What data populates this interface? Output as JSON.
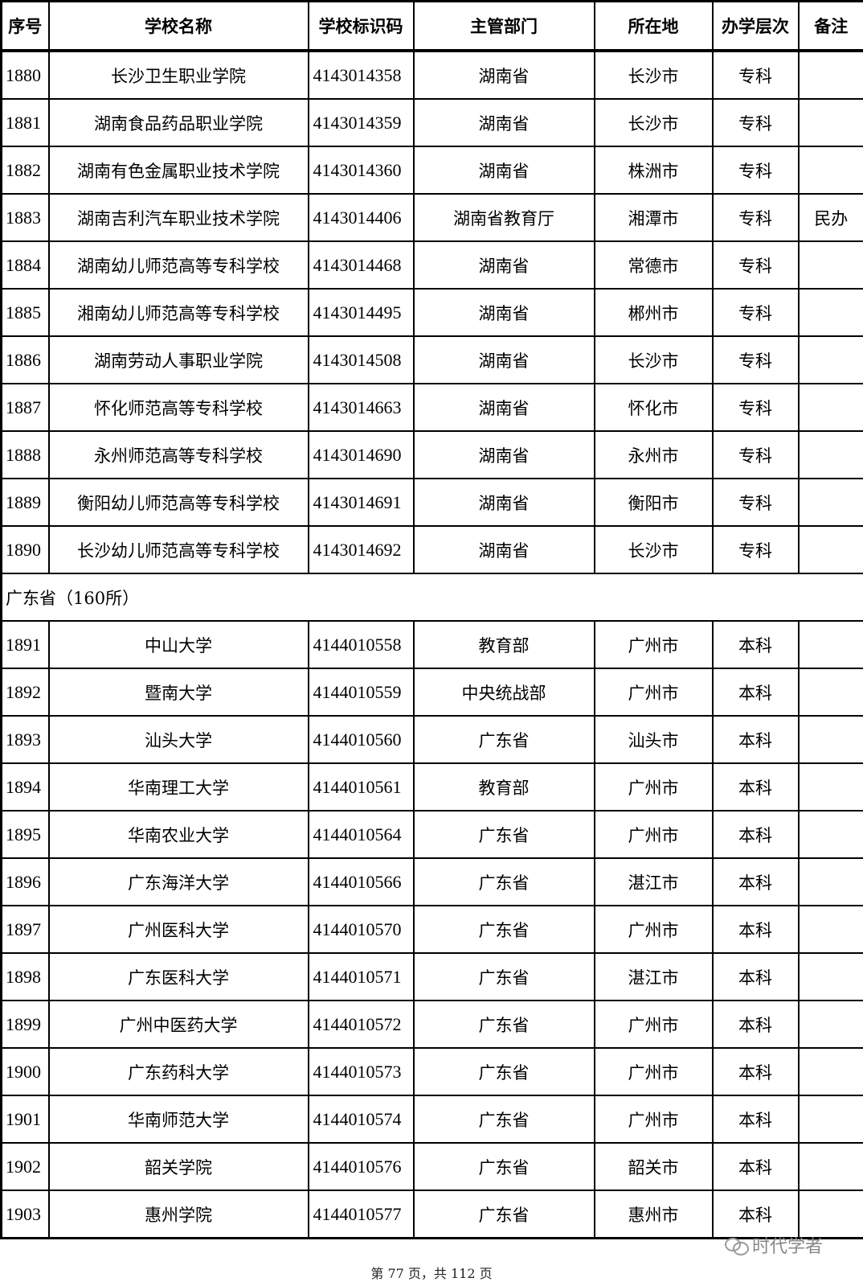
{
  "columns": [
    "序号",
    "学校名称",
    "学校标识码",
    "主管部门",
    "所在地",
    "办学层次",
    "备注"
  ],
  "rows": [
    [
      "1880",
      "长沙卫生职业学院",
      "4143014358",
      "湖南省",
      "长沙市",
      "专科",
      ""
    ],
    [
      "1881",
      "湖南食品药品职业学院",
      "4143014359",
      "湖南省",
      "长沙市",
      "专科",
      ""
    ],
    [
      "1882",
      "湖南有色金属职业技术学院",
      "4143014360",
      "湖南省",
      "株洲市",
      "专科",
      ""
    ],
    [
      "1883",
      "湖南吉利汽车职业技术学院",
      "4143014406",
      "湖南省教育厅",
      "湘潭市",
      "专科",
      "民办"
    ],
    [
      "1884",
      "湖南幼儿师范高等专科学校",
      "4143014468",
      "湖南省",
      "常德市",
      "专科",
      ""
    ],
    [
      "1885",
      "湘南幼儿师范高等专科学校",
      "4143014495",
      "湖南省",
      "郴州市",
      "专科",
      ""
    ],
    [
      "1886",
      "湖南劳动人事职业学院",
      "4143014508",
      "湖南省",
      "长沙市",
      "专科",
      ""
    ],
    [
      "1887",
      "怀化师范高等专科学校",
      "4143014663",
      "湖南省",
      "怀化市",
      "专科",
      ""
    ],
    [
      "1888",
      "永州师范高等专科学校",
      "4143014690",
      "湖南省",
      "永州市",
      "专科",
      ""
    ],
    [
      "1889",
      "衡阳幼儿师范高等专科学校",
      "4143014691",
      "湖南省",
      "衡阳市",
      "专科",
      ""
    ],
    [
      "1890",
      "长沙幼儿师范高等专科学校",
      "4143014692",
      "湖南省",
      "长沙市",
      "专科",
      ""
    ],
    {
      "section": "广东省（160所）"
    },
    [
      "1891",
      "中山大学",
      "4144010558",
      "教育部",
      "广州市",
      "本科",
      ""
    ],
    [
      "1892",
      "暨南大学",
      "4144010559",
      "中央统战部",
      "广州市",
      "本科",
      ""
    ],
    [
      "1893",
      "汕头大学",
      "4144010560",
      "广东省",
      "汕头市",
      "本科",
      ""
    ],
    [
      "1894",
      "华南理工大学",
      "4144010561",
      "教育部",
      "广州市",
      "本科",
      ""
    ],
    [
      "1895",
      "华南农业大学",
      "4144010564",
      "广东省",
      "广州市",
      "本科",
      ""
    ],
    [
      "1896",
      "广东海洋大学",
      "4144010566",
      "广东省",
      "湛江市",
      "本科",
      ""
    ],
    [
      "1897",
      "广州医科大学",
      "4144010570",
      "广东省",
      "广州市",
      "本科",
      ""
    ],
    [
      "1898",
      "广东医科大学",
      "4144010571",
      "广东省",
      "湛江市",
      "本科",
      ""
    ],
    [
      "1899",
      "广州中医药大学",
      "4144010572",
      "广东省",
      "广州市",
      "本科",
      ""
    ],
    [
      "1900",
      "广东药科大学",
      "4144010573",
      "广东省",
      "广州市",
      "本科",
      ""
    ],
    [
      "1901",
      "华南师范大学",
      "4144010574",
      "广东省",
      "广州市",
      "本科",
      ""
    ],
    [
      "1902",
      "韶关学院",
      "4144010576",
      "广东省",
      "韶关市",
      "本科",
      ""
    ],
    [
      "1903",
      "惠州学院",
      "4144010577",
      "广东省",
      "惠州市",
      "本科",
      ""
    ]
  ],
  "watermark": {
    "icon": "wechat-icon",
    "text": "时代学者"
  },
  "footer": "第 77 页，共 112 页"
}
